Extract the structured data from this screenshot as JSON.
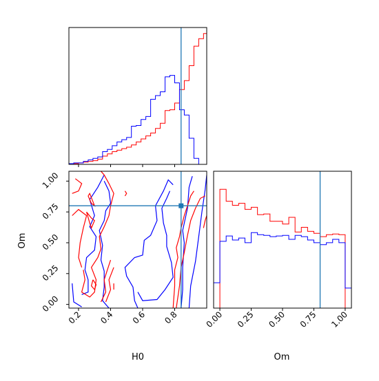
{
  "chart_data": {
    "type": "corner",
    "colors": {
      "red": "#ff0000",
      "blue": "#0000ff",
      "truth": "#1f77b4",
      "frame": "#000000"
    },
    "truth": {
      "H0": 0.84,
      "Om": 0.8
    },
    "panels": [
      {
        "id": "H0-marginal",
        "type": "step-histogram",
        "xlim": [
          0.14,
          1.0
        ],
        "ylim": [
          0,
          183
        ],
        "bins": [
          0.14,
          0.17,
          0.2,
          0.23,
          0.26,
          0.29,
          0.32,
          0.35,
          0.38,
          0.41,
          0.44,
          0.47,
          0.5,
          0.53,
          0.56,
          0.59,
          0.62,
          0.65,
          0.68,
          0.71,
          0.74,
          0.77,
          0.8,
          0.83,
          0.86,
          0.89,
          0.92,
          0.95,
          0.98,
          1.0
        ],
        "series": [
          {
            "name": "",
            "color": "red",
            "counts": [
              0,
              1,
              2,
              3,
              4,
              5,
              7,
              11,
              14,
              17,
              19,
              21,
              23,
              26,
              30,
              34,
              38,
              42,
              48,
              55,
              72,
              73,
              82,
              100,
              112,
              132,
              158,
              168,
              175
            ]
          },
          {
            "name": "",
            "color": "blue",
            "counts": [
              1,
              2,
              2,
              4,
              6,
              8,
              10,
              17,
              20,
              25,
              30,
              33,
              36,
              51,
              52,
              60,
              64,
              87,
              92,
              97,
              117,
              119,
              109,
              73,
              66,
              35,
              8,
              0,
              0
            ]
          }
        ],
        "x_ticks": [
          0.2,
          0.4,
          0.6,
          0.8
        ],
        "show_tick_labels": false
      },
      {
        "id": "H0-Om-2d",
        "type": "contour",
        "xlim": [
          0.14,
          1.0
        ],
        "ylim": [
          -0.03,
          1.08
        ],
        "x_ticks": [
          0.2,
          0.4,
          0.6,
          0.8
        ],
        "x_tick_labels": [
          "0.2",
          "0.4",
          "0.6",
          "0.8"
        ],
        "y_ticks": [
          0.0,
          0.25,
          0.5,
          0.75,
          1.0
        ],
        "y_tick_labels": [
          "0.00",
          "0.25",
          "0.50",
          "0.75",
          "1.00"
        ],
        "xlabel": "H0",
        "ylabel": "Om",
        "contours": [
          {
            "color": "blue",
            "points": [
              [
                0.16,
                0.17
              ],
              [
                0.17,
                0.02
              ],
              [
                0.22,
                -0.02
              ]
            ]
          },
          {
            "color": "blue",
            "points": [
              [
                0.22,
                0.08
              ],
              [
                0.26,
                0.1
              ],
              [
                0.26,
                0.2
              ],
              [
                0.24,
                0.28
              ],
              [
                0.25,
                0.38
              ],
              [
                0.3,
                0.44
              ],
              [
                0.31,
                0.55
              ],
              [
                0.27,
                0.63
              ],
              [
                0.3,
                0.72
              ],
              [
                0.27,
                0.85
              ],
              [
                0.32,
                0.95
              ],
              [
                0.36,
                1.05
              ]
            ]
          },
          {
            "color": "blue",
            "points": [
              [
                0.36,
                1.0
              ],
              [
                0.39,
                0.92
              ],
              [
                0.4,
                0.82
              ],
              [
                0.37,
                0.76
              ],
              [
                0.36,
                0.68
              ],
              [
                0.33,
                0.6
              ],
              [
                0.35,
                0.48
              ],
              [
                0.34,
                0.36
              ],
              [
                0.36,
                0.27
              ],
              [
                0.36,
                0.14
              ],
              [
                0.35,
                0.03
              ],
              [
                0.39,
                -0.03
              ]
            ]
          },
          {
            "color": "blue",
            "points": [
              [
                0.57,
                -0.03
              ],
              [
                0.55,
                0.03
              ],
              [
                0.54,
                0.14
              ],
              [
                0.5,
                0.23
              ],
              [
                0.49,
                0.3
              ],
              [
                0.55,
                0.38
              ],
              [
                0.6,
                0.4
              ],
              [
                0.61,
                0.52
              ],
              [
                0.65,
                0.56
              ],
              [
                0.69,
                0.68
              ],
              [
                0.68,
                0.8
              ],
              [
                0.73,
                0.92
              ],
              [
                0.76,
                1.01
              ],
              [
                0.79,
                0.97
              ]
            ]
          },
          {
            "color": "blue",
            "points": [
              [
                0.77,
                0.92
              ],
              [
                0.75,
                0.86
              ],
              [
                0.72,
                0.78
              ],
              [
                0.73,
                0.66
              ],
              [
                0.75,
                0.56
              ],
              [
                0.75,
                0.47
              ],
              [
                0.78,
                0.34
              ],
              [
                0.79,
                0.22
              ],
              [
                0.74,
                0.12
              ],
              [
                0.69,
                0.04
              ],
              [
                0.6,
                0.03
              ],
              [
                0.57,
                0.1
              ]
            ]
          },
          {
            "color": "blue",
            "points": [
              [
                0.84,
                -0.03
              ],
              [
                0.85,
                0.12
              ],
              [
                0.85,
                0.3
              ],
              [
                0.86,
                0.5
              ],
              [
                0.85,
                0.6
              ],
              [
                0.88,
                0.78
              ],
              [
                0.89,
                0.95
              ],
              [
                0.91,
                1.04
              ]
            ]
          },
          {
            "color": "blue",
            "points": [
              [
                0.89,
                -0.03
              ],
              [
                0.9,
                0.15
              ],
              [
                0.93,
                0.35
              ],
              [
                0.95,
                0.55
              ],
              [
                0.97,
                0.75
              ],
              [
                0.99,
                0.93
              ],
              [
                1.0,
                1.05
              ]
            ]
          },
          {
            "color": "red",
            "points": [
              [
                0.18,
                1.02
              ],
              [
                0.22,
                0.98
              ],
              [
                0.2,
                0.92
              ],
              [
                0.16,
                0.9
              ]
            ]
          },
          {
            "color": "red",
            "points": [
              [
                0.26,
                0.88
              ],
              [
                0.28,
                0.82
              ],
              [
                0.3,
                0.8
              ],
              [
                0.27,
                0.9
              ],
              [
                0.26,
                0.88
              ]
            ]
          },
          {
            "color": "red",
            "points": [
              [
                0.25,
                0.75
              ],
              [
                0.28,
                0.7
              ],
              [
                0.3,
                0.68
              ],
              [
                0.28,
                0.62
              ],
              [
                0.27,
                0.66
              ],
              [
                0.25,
                0.75
              ]
            ]
          },
          {
            "color": "red",
            "points": [
              [
                0.16,
                0.72
              ],
              [
                0.2,
                0.77
              ],
              [
                0.25,
                0.72
              ],
              [
                0.23,
                0.62
              ],
              [
                0.21,
                0.5
              ],
              [
                0.2,
                0.38
              ],
              [
                0.22,
                0.3
              ]
            ]
          },
          {
            "color": "red",
            "points": [
              [
                0.23,
                0.28
              ],
              [
                0.24,
                0.2
              ],
              [
                0.22,
                0.1
              ],
              [
                0.27,
                0.06
              ],
              [
                0.3,
                0.1
              ],
              [
                0.31,
                0.2
              ],
              [
                0.28,
                0.3
              ],
              [
                0.32,
                0.38
              ],
              [
                0.34,
                0.45
              ],
              [
                0.33,
                0.55
              ],
              [
                0.36,
                0.63
              ],
              [
                0.39,
                0.72
              ],
              [
                0.4,
                0.8
              ],
              [
                0.42,
                0.9
              ],
              [
                0.39,
                0.98
              ],
              [
                0.36,
                1.05
              ],
              [
                0.34,
                1.08
              ]
            ]
          },
          {
            "color": "red",
            "points": [
              [
                0.29,
                0.2
              ],
              [
                0.28,
                0.15
              ],
              [
                0.3,
                0.12
              ],
              [
                0.31,
                0.16
              ],
              [
                0.29,
                0.2
              ]
            ]
          },
          {
            "color": "red",
            "points": [
              [
                0.34,
                0.02
              ],
              [
                0.37,
                0.1
              ],
              [
                0.36,
                0.2
              ],
              [
                0.38,
                0.28
              ],
              [
                0.4,
                0.36
              ]
            ]
          },
          {
            "color": "red",
            "points": [
              [
                0.42,
                0.3
              ],
              [
                0.39,
                0.2
              ],
              [
                0.4,
                0.12
              ],
              [
                0.37,
                0.02
              ]
            ]
          },
          {
            "color": "red",
            "points": [
              [
                0.42,
                0.17
              ],
              [
                0.42,
                0.12
              ]
            ]
          },
          {
            "color": "red",
            "points": [
              [
                0.49,
                0.92
              ],
              [
                0.5,
                0.9
              ],
              [
                0.49,
                0.88
              ]
            ]
          },
          {
            "color": "red",
            "points": [
              [
                0.79,
                -0.03
              ],
              [
                0.8,
                0.15
              ],
              [
                0.8,
                0.28
              ],
              [
                0.82,
                0.38
              ],
              [
                0.81,
                0.46
              ],
              [
                0.83,
                0.55
              ],
              [
                0.84,
                0.62
              ],
              [
                0.86,
                0.72
              ],
              [
                0.88,
                0.8
              ],
              [
                0.9,
                0.88
              ],
              [
                0.92,
                0.92
              ]
            ]
          },
          {
            "color": "red",
            "points": [
              [
                0.81,
                -0.03
              ],
              [
                0.83,
                0.15
              ],
              [
                0.84,
                0.3
              ],
              [
                0.86,
                0.42
              ],
              [
                0.88,
                0.56
              ],
              [
                0.9,
                0.68
              ],
              [
                0.93,
                0.78
              ],
              [
                0.96,
                0.86
              ],
              [
                0.99,
                0.88
              ]
            ]
          },
          {
            "color": "red",
            "points": [
              [
                0.98,
                0.62
              ],
              [
                0.99,
                0.68
              ],
              [
                1.0,
                0.72
              ]
            ]
          }
        ]
      },
      {
        "id": "Om-marginal",
        "type": "step-histogram",
        "xlim": [
          -0.05,
          1.05
        ],
        "ylim": [
          0,
          205
        ],
        "bins": [
          -0.05,
          0.0,
          0.05,
          0.1,
          0.15,
          0.2,
          0.25,
          0.3,
          0.35,
          0.4,
          0.45,
          0.5,
          0.55,
          0.6,
          0.65,
          0.7,
          0.75,
          0.8,
          0.85,
          0.9,
          0.95,
          1.0,
          1.05
        ],
        "series": [
          {
            "name": "",
            "color": "red",
            "counts": [
              0,
              178,
              160,
              154,
              157,
              148,
              151,
              140,
              141,
              130,
              130,
              126,
              136,
              114,
              121,
              115,
              112,
              107,
              110,
              111,
              110,
              0
            ]
          },
          {
            "name": "",
            "color": "blue",
            "counts": [
              38,
              100,
              108,
              102,
              105,
              98,
              113,
              110,
              109,
              107,
              108,
              109,
              103,
              109,
              107,
              102,
              98,
              95,
              98,
              103,
              98,
              30
            ]
          }
        ],
        "x_ticks": [
          0.0,
          0.25,
          0.5,
          0.75,
          1.0
        ],
        "x_tick_labels": [
          "0.00",
          "0.25",
          "0.50",
          "0.75",
          "1.00"
        ],
        "xlabel": "Om"
      }
    ]
  }
}
